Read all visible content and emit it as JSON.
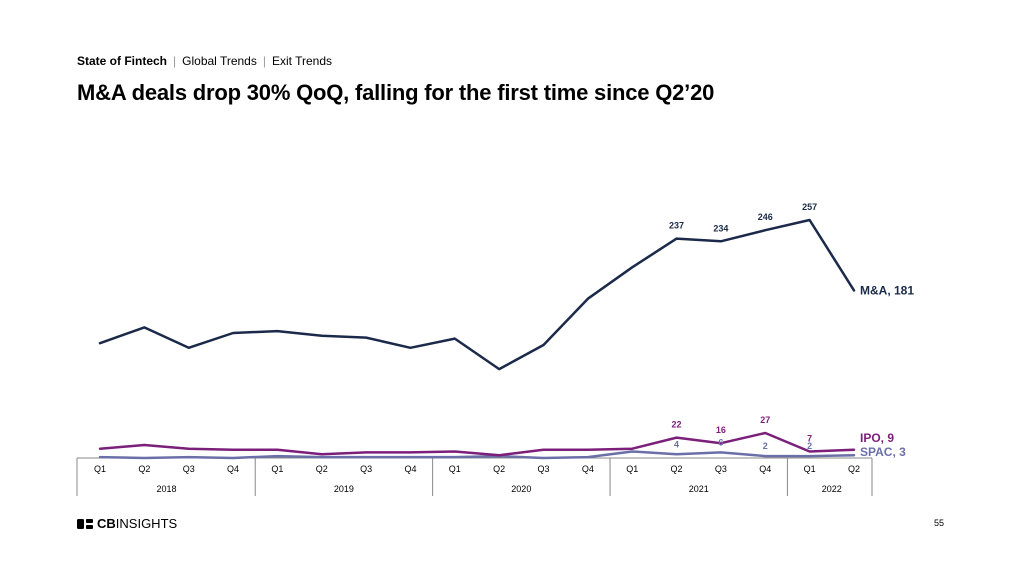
{
  "header": {
    "breadcrumb": [
      "State of Fintech",
      "Global Trends",
      "Exit Trends"
    ],
    "title": "M&A deals drop 30% QoQ, falling for the first time since Q2’20"
  },
  "footer": {
    "logo_text_bold": "CB",
    "logo_text": "INSIGHTS",
    "page_number": "55"
  },
  "colors": {
    "ma": "#1b2a4a",
    "ipo": "#7b1f7a",
    "spac": "#6b6fa8",
    "axis": "#888888"
  },
  "chart_data": {
    "type": "line",
    "x": [
      "Q1 2018",
      "Q2 2018",
      "Q3 2018",
      "Q4 2018",
      "Q1 2019",
      "Q2 2019",
      "Q3 2019",
      "Q4 2019",
      "Q1 2020",
      "Q2 2020",
      "Q3 2020",
      "Q4 2020",
      "Q1 2021",
      "Q2 2021",
      "Q3 2021",
      "Q4 2021",
      "Q1 2022",
      "Q2 2022"
    ],
    "quarter_labels": [
      "Q1",
      "Q2",
      "Q3",
      "Q4",
      "Q1",
      "Q2",
      "Q3",
      "Q4",
      "Q1",
      "Q2",
      "Q3",
      "Q4",
      "Q1",
      "Q2",
      "Q3",
      "Q4",
      "Q1",
      "Q2"
    ],
    "year_groups": [
      {
        "label": "2018",
        "quarters": 4
      },
      {
        "label": "2019",
        "quarters": 4
      },
      {
        "label": "2020",
        "quarters": 4
      },
      {
        "label": "2021",
        "quarters": 4
      },
      {
        "label": "2022",
        "quarters": 2
      }
    ],
    "ylim": [
      0,
      270
    ],
    "grid": false,
    "series": [
      {
        "name": "M&A",
        "end_label": "M&A, 181",
        "color": "#1b2a4a",
        "values": [
          124,
          141,
          119,
          135,
          137,
          132,
          130,
          119,
          129,
          96,
          122,
          172,
          206,
          237,
          234,
          246,
          257,
          181
        ],
        "point_labels": {
          "13": "237",
          "14": "234",
          "15": "246",
          "16": "257"
        }
      },
      {
        "name": "IPO",
        "end_label": "IPO, 9",
        "color": "#7b1f7a",
        "values": [
          10,
          14,
          10,
          9,
          9,
          4,
          6,
          6,
          7,
          3,
          9,
          9,
          10,
          22,
          16,
          27,
          7,
          9
        ],
        "point_labels": {
          "13": "22",
          "14": "16",
          "15": "27",
          "16": "7"
        }
      },
      {
        "name": "SPAC",
        "end_label": "SPAC, 3",
        "color": "#6b6fa8",
        "values": [
          1,
          0,
          1,
          0,
          2,
          1,
          1,
          1,
          1,
          2,
          0,
          1,
          7,
          4,
          6,
          2,
          2,
          3
        ],
        "point_labels": {
          "13": "4",
          "14": "6",
          "15": "2",
          "16": "2"
        }
      }
    ]
  }
}
